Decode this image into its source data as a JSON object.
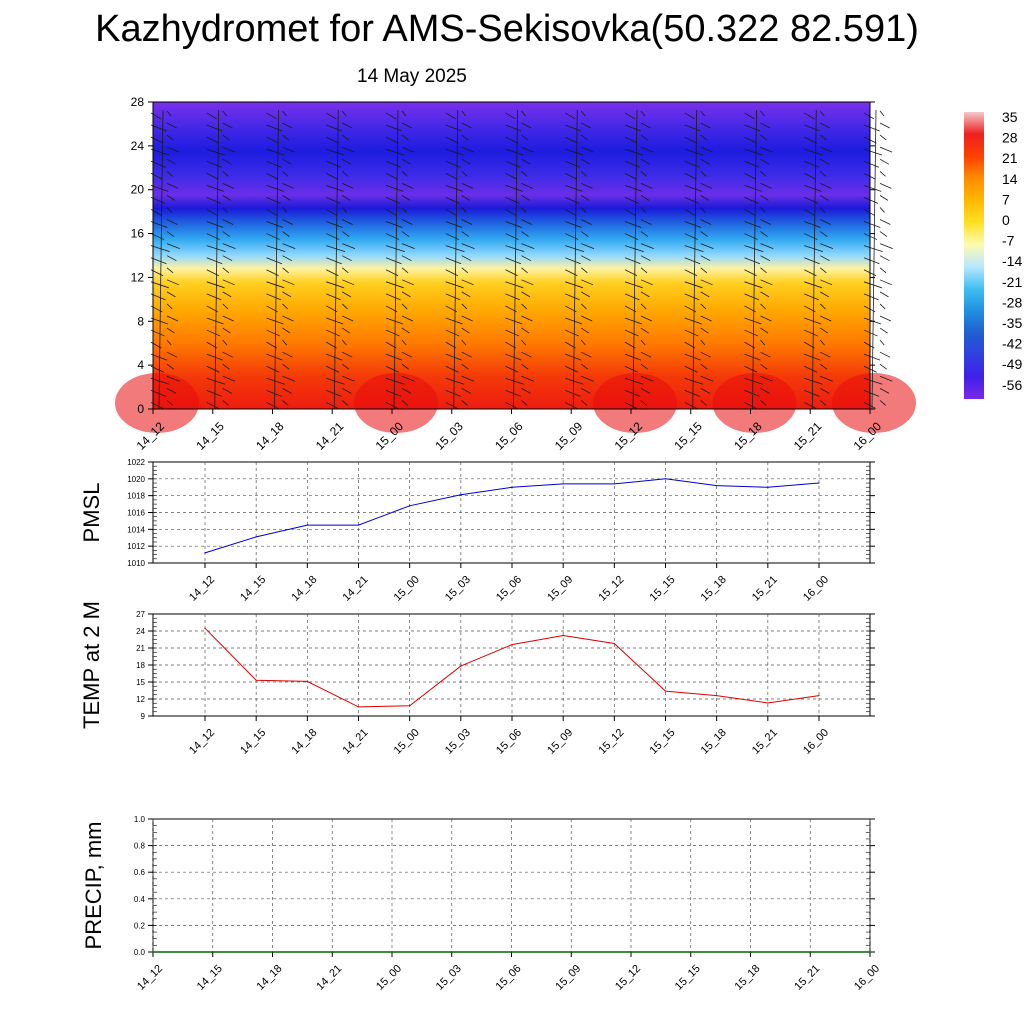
{
  "header": {
    "title": "Kazhydromet for AMS-Sekisovka(50.322 82.591)",
    "date": "14 May 2025"
  },
  "time_labels": [
    "14_12",
    "14_15",
    "14_18",
    "14_21",
    "15_00",
    "15_03",
    "15_06",
    "15_09",
    "15_12",
    "15_15",
    "15_18",
    "15_21",
    "16_00"
  ],
  "chart_data": [
    {
      "type": "heatmap",
      "name": "vertical-profile",
      "yticks": [
        0,
        4,
        8,
        12,
        16,
        20,
        24,
        28
      ],
      "ylim": [
        0,
        28
      ],
      "colorbar_labels": [
        "35",
        "28",
        "21",
        "14",
        "7",
        "0",
        "-7",
        "-14",
        "-21",
        "-28",
        "-35",
        "-42",
        "-49",
        "-56"
      ],
      "colorbar_colors": [
        "#f4c8c8",
        "#ee2020",
        "#ff4000",
        "#ff8c00",
        "#ffb800",
        "#ffe020",
        "#fffbb0",
        "#b8e8ff",
        "#40c0f0",
        "#2090e0",
        "#2060d0",
        "#3040e0",
        "#4020e8",
        "#7828e8"
      ],
      "layer_colors": [
        {
          "alt": 0,
          "color": "#ee1c10"
        },
        {
          "alt": 3,
          "color": "#f43a08"
        },
        {
          "alt": 6,
          "color": "#ff7a00"
        },
        {
          "alt": 9,
          "color": "#ffa800"
        },
        {
          "alt": 11.5,
          "color": "#ffd020"
        },
        {
          "alt": 12.8,
          "color": "#fff2a0"
        },
        {
          "alt": 14,
          "color": "#90d8ff"
        },
        {
          "alt": 15.5,
          "color": "#30a8f0"
        },
        {
          "alt": 17,
          "color": "#2060e0"
        },
        {
          "alt": 18.3,
          "color": "#1a1ad8"
        },
        {
          "alt": 19.5,
          "color": "#6a2ee8"
        },
        {
          "alt": 21.5,
          "color": "#3a2ae8"
        },
        {
          "alt": 23.5,
          "color": "#1c1ce0"
        },
        {
          "alt": 26,
          "color": "#4a2ae8"
        },
        {
          "alt": 28,
          "color": "#7a30ea"
        }
      ]
    },
    {
      "type": "line",
      "ylabel": "PMSL",
      "ylim": [
        1010,
        1022
      ],
      "yticks": [
        1010,
        1012,
        1014,
        1016,
        1018,
        1020,
        1022
      ],
      "values": [
        1011.2,
        1013.1,
        1014.5,
        1014.5,
        1016.8,
        1018.1,
        1019.0,
        1019.4,
        1019.4,
        1020.0,
        1019.2,
        1019.0,
        1019.5
      ],
      "color": "#0000cc"
    },
    {
      "type": "line",
      "ylabel": "TEMP at 2 M",
      "ylim": [
        9,
        27
      ],
      "yticks": [
        9,
        12,
        15,
        18,
        21,
        24,
        27
      ],
      "values": [
        24.5,
        15.3,
        15.1,
        10.6,
        10.8,
        17.8,
        21.6,
        23.2,
        21.8,
        13.4,
        12.6,
        11.3,
        12.6
      ],
      "color": "#dd0000"
    },
    {
      "type": "line",
      "ylabel": "PRECIP, mm",
      "ylim": [
        0,
        1.0
      ],
      "yticks": [
        "0.0",
        "0.2",
        "0.4",
        "0.6",
        "0.8",
        "1.0"
      ],
      "values": [
        0,
        0,
        0,
        0,
        0,
        0,
        0,
        0,
        0,
        0,
        0,
        0,
        0
      ],
      "color": "#006600"
    }
  ]
}
